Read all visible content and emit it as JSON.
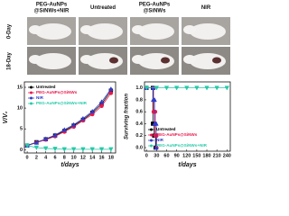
{
  "photos": {
    "columns": [
      "PEG-AuNPs",
      "@SiNWs+NIR",
      "Untreated",
      "PEG-AuNPs",
      "@SiNWs",
      "NIR"
    ],
    "rows": [
      "0-Day",
      "18-Day"
    ]
  },
  "chart_data": [
    {
      "type": "line",
      "xlabel": "t/days",
      "ylabel": "V/V₀",
      "xlim": [
        -0.6,
        19
      ],
      "ylim": [
        -0.8,
        16.3
      ],
      "xticks": [
        0,
        2,
        4,
        6,
        8,
        10,
        12,
        14,
        16,
        18
      ],
      "yticks": [
        0,
        5,
        10,
        15
      ],
      "legend": "upper left",
      "series": [
        {
          "name": "Untreated",
          "color": "#000000",
          "marker": "square",
          "x": [
            0,
            2,
            4,
            6,
            8,
            10,
            12,
            14,
            16,
            18
          ],
          "values": [
            1,
            1.8,
            2.5,
            3.4,
            4.5,
            5.8,
            7.2,
            8.9,
            11,
            14.2
          ]
        },
        {
          "name": "PEG-AuNPs@SiNWs",
          "color": "#e8174a",
          "marker": "circle",
          "x": [
            0,
            2,
            4,
            6,
            8,
            10,
            12,
            14,
            16,
            18
          ],
          "values": [
            1,
            1.7,
            2.4,
            3.2,
            4.3,
            5.5,
            7,
            8.5,
            10.5,
            13.6
          ]
        },
        {
          "name": "NIR",
          "color": "#2f3cc9",
          "marker": "triangle",
          "x": [
            0,
            2,
            4,
            6,
            8,
            10,
            12,
            14,
            16,
            18
          ],
          "values": [
            1,
            1.7,
            2.6,
            3.5,
            4.8,
            6,
            7.5,
            9.2,
            11.5,
            14.6
          ]
        },
        {
          "name": "PEG-AuNPs@SiNWs+NIR",
          "color": "#27c9a8",
          "marker": "triangle-down",
          "x": [
            0,
            2,
            4,
            6,
            8,
            10,
            12,
            14,
            16,
            18
          ],
          "values": [
            1,
            0.5,
            0.3,
            0.2,
            0.1,
            0.1,
            0.1,
            0.1,
            0.1,
            0.1
          ]
        }
      ]
    },
    {
      "type": "line",
      "xlabel": "t/days",
      "ylabel": "Surviving fraction",
      "xlim": [
        -6,
        250
      ],
      "ylim": [
        -0.06,
        1.1
      ],
      "xticks": [
        0,
        30,
        60,
        90,
        120,
        150,
        180,
        210,
        240
      ],
      "yticks": [
        {
          "value": 0,
          "label": "0.0"
        },
        0.2,
        0.4,
        0.6,
        0.8,
        {
          "value": 1,
          "label": "1.0"
        }
      ],
      "legend": "lower left",
      "series": [
        {
          "name": "Untreated",
          "color": "#000000",
          "marker": "square",
          "x": [
            0,
            19,
            19,
            23,
            23,
            27,
            27
          ],
          "values": [
            1,
            1,
            0.4,
            0.4,
            0.2,
            0.2,
            0
          ]
        },
        {
          "name": "PEG-AuNPs@SiNWs",
          "color": "#e8174a",
          "marker": "circle",
          "x": [
            0,
            21,
            21,
            26,
            26,
            30,
            30
          ],
          "values": [
            1,
            1,
            0.6,
            0.6,
            0.2,
            0.2,
            0
          ]
        },
        {
          "name": "NIR",
          "color": "#2f3cc9",
          "marker": "triangle",
          "x": [
            0,
            20,
            20,
            24,
            24,
            29,
            29
          ],
          "values": [
            1,
            1,
            0.8,
            0.8,
            0.4,
            0.4,
            0
          ]
        },
        {
          "name": "PEG-AuNPs@SiNWs+NIR",
          "color": "#27c9a8",
          "marker": "triangle-down",
          "x": [
            0,
            30,
            60,
            90,
            120,
            150,
            180,
            210,
            240
          ],
          "values": [
            1,
            1,
            1,
            1,
            1,
            1,
            1,
            1,
            1
          ]
        }
      ]
    }
  ]
}
